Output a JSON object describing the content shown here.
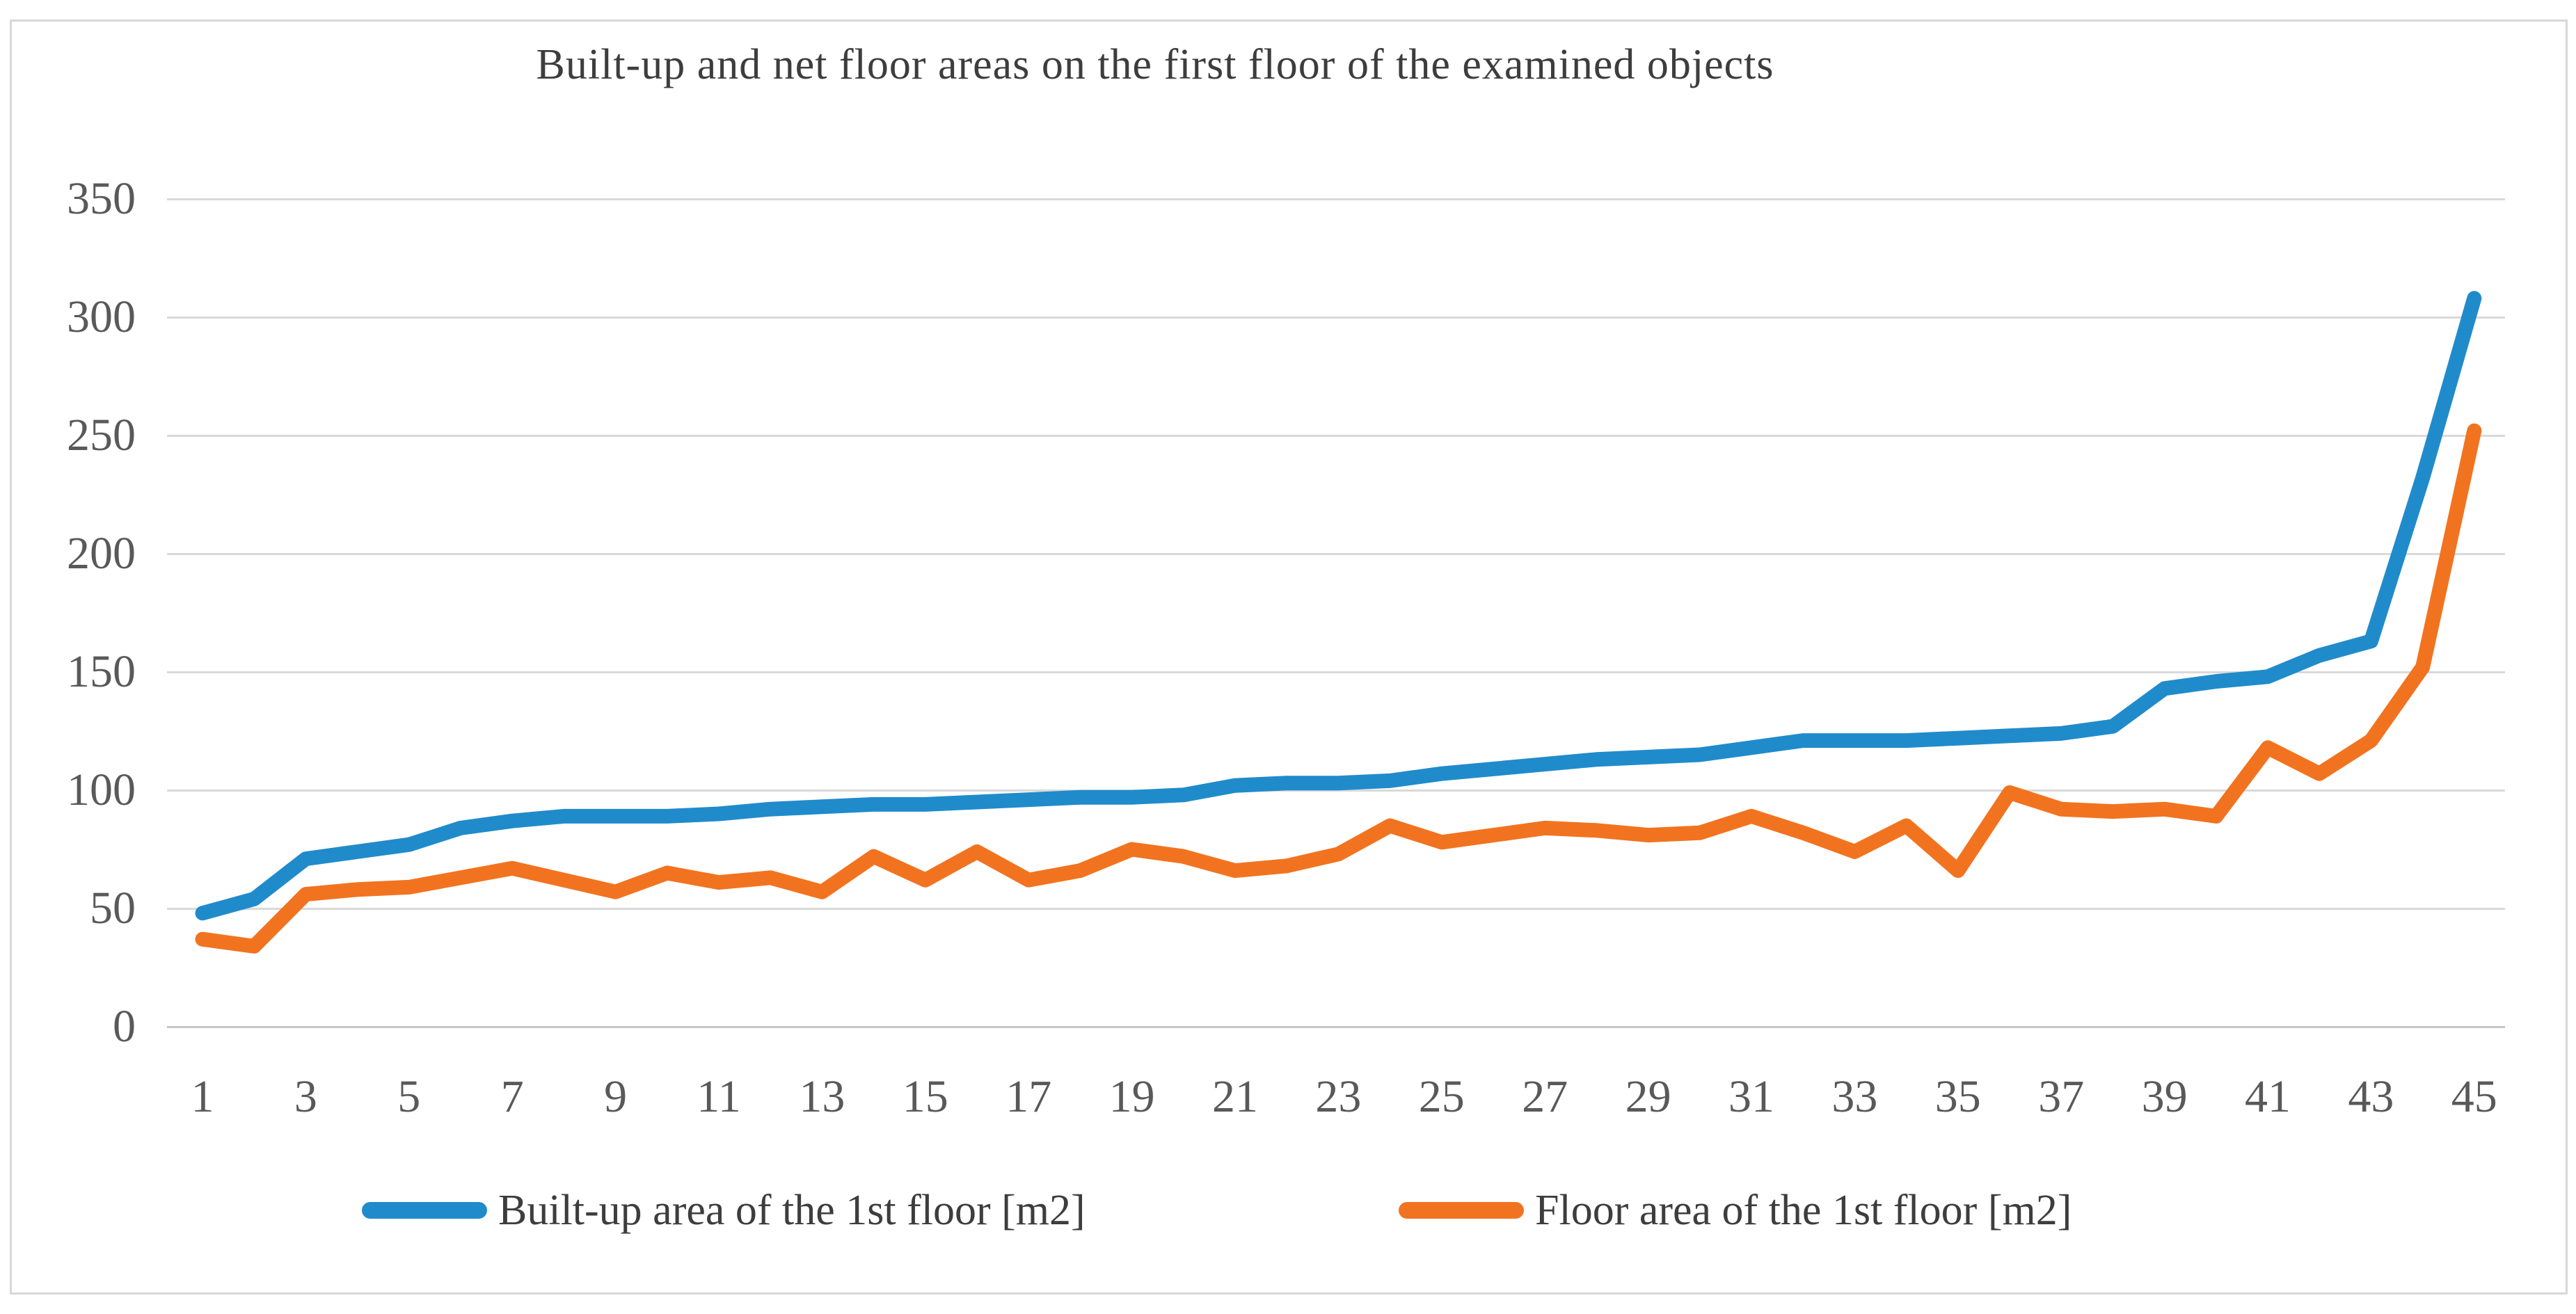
{
  "title": "Built-up and net floor areas on the first floor of the examined objects",
  "colors": {
    "builtup_line": "#208bcb",
    "floor_line": "#f2731f",
    "gridline": "#d9d9d9",
    "axis_zero_line": "#c6c6c6",
    "axis_text": "#595959",
    "title_text": "#3d3d3d",
    "frame_border": "#d8d8d8"
  },
  "chart_data": {
    "type": "line",
    "title": "Built-up and net floor areas on the first floor of the examined objects",
    "xlabel": "",
    "ylabel": "",
    "ylim": [
      0,
      350
    ],
    "y_ticks": [
      0,
      50,
      100,
      150,
      200,
      250,
      300,
      350
    ],
    "x": [
      1,
      2,
      3,
      4,
      5,
      6,
      7,
      8,
      9,
      10,
      11,
      12,
      13,
      14,
      15,
      16,
      17,
      18,
      19,
      20,
      21,
      22,
      23,
      24,
      25,
      26,
      27,
      28,
      29,
      30,
      31,
      32,
      33,
      34,
      35,
      36,
      37,
      38,
      39,
      40,
      41,
      42,
      43,
      44,
      45
    ],
    "x_tick_labels": [
      "1",
      "3",
      "5",
      "7",
      "9",
      "11",
      "13",
      "15",
      "17",
      "19",
      "21",
      "23",
      "25",
      "27",
      "29",
      "31",
      "33",
      "35",
      "37",
      "39",
      "41",
      "43",
      "45"
    ],
    "grid": true,
    "legend_position": "bottom",
    "series": [
      {
        "name": "Built-up area of the 1st floor [m2]",
        "color": "#208bcb",
        "values": [
          48,
          54,
          71,
          74,
          77,
          84,
          87,
          89,
          89,
          89,
          90,
          92,
          93,
          94,
          94,
          95,
          96,
          97,
          97,
          98,
          102,
          103,
          103,
          104,
          107,
          109,
          111,
          113,
          114,
          115,
          118,
          121,
          121,
          121,
          122,
          123,
          124,
          127,
          143,
          146,
          148,
          157,
          163,
          232,
          308
        ]
      },
      {
        "name": "Floor area of the 1st floor [m2]",
        "color": "#f2731f",
        "values": [
          37,
          34,
          56,
          58,
          59,
          63,
          67,
          62,
          57,
          65,
          61,
          63,
          57,
          72,
          62,
          74,
          62,
          66,
          75,
          72,
          66,
          68,
          73,
          85,
          78,
          81,
          84,
          83,
          81,
          82,
          89,
          82,
          74,
          85,
          66,
          99,
          92,
          91,
          92,
          89,
          118,
          107,
          121,
          152,
          252
        ]
      }
    ]
  },
  "legend": {
    "items": [
      {
        "label": "Built-up area of the 1st floor [m2]"
      },
      {
        "label": "Floor area of the 1st floor [m2]"
      }
    ]
  }
}
